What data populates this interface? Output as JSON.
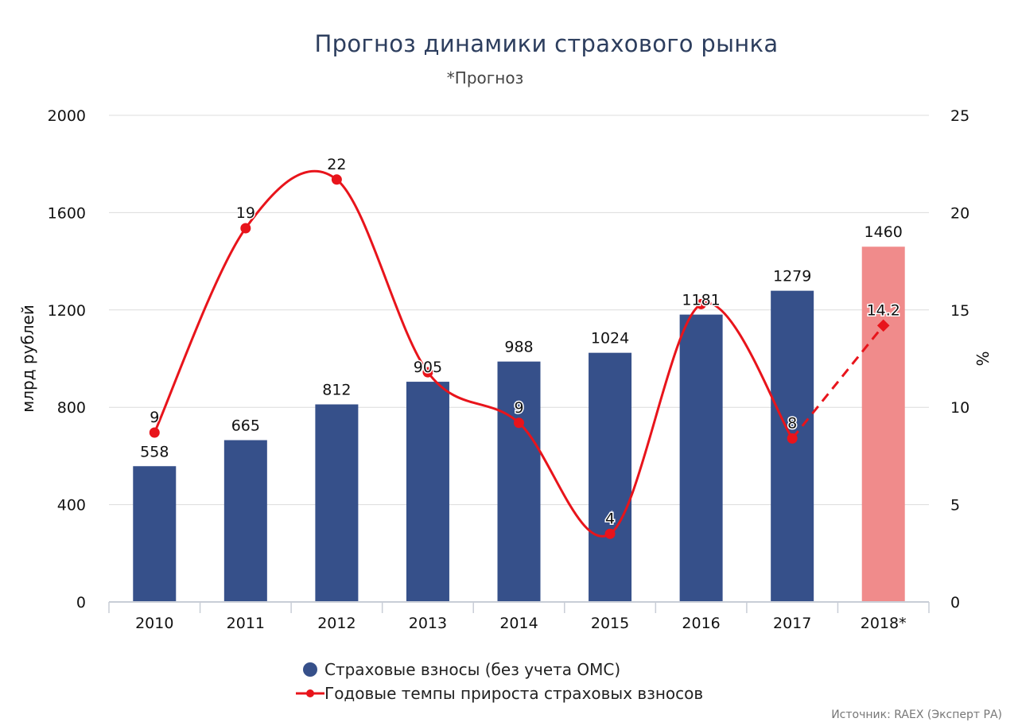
{
  "chart_data": {
    "type": "bar",
    "title": "Прогноз динамики страхового рынка",
    "subtitle": "*Прогноз",
    "categories": [
      "2010",
      "2011",
      "2012",
      "2013",
      "2014",
      "2015",
      "2016",
      "2017",
      "2018*"
    ],
    "series": [
      {
        "name": "Страховые взносы (без учета ОМС)",
        "type": "bar",
        "axis": "left",
        "values": [
          558,
          665,
          812,
          905,
          988,
          1024,
          1181,
          1279,
          1460
        ],
        "labels": [
          "558",
          "665",
          "812",
          "905",
          "988",
          "1024",
          "1181",
          "1279",
          "1460"
        ],
        "color": "#36508a",
        "forecast_color": "#f08b8b"
      },
      {
        "name": "Годовые темпы прироста страховых взносов",
        "type": "line",
        "axis": "right",
        "values": [
          8.7,
          19.2,
          21.7,
          11.8,
          9.2,
          3.5,
          15.3,
          8.4,
          14.2
        ],
        "labels": [
          "9",
          "19",
          "22",
          "",
          "9",
          "4",
          "",
          "8",
          "14.2"
        ],
        "color": "#e8141b"
      }
    ],
    "ylabel": "млрд рублей",
    "ylim": [
      0,
      2000
    ],
    "yticks": [
      "0",
      "400",
      "800",
      "1200",
      "1600",
      "2000"
    ],
    "y2label": "%",
    "y2lim": [
      0,
      25
    ],
    "y2ticks": [
      "0",
      "5",
      "10",
      "15",
      "20",
      "25"
    ],
    "grid": true,
    "legend": "bottom"
  },
  "source": "Источник: RAEX (Эксперт РА)"
}
